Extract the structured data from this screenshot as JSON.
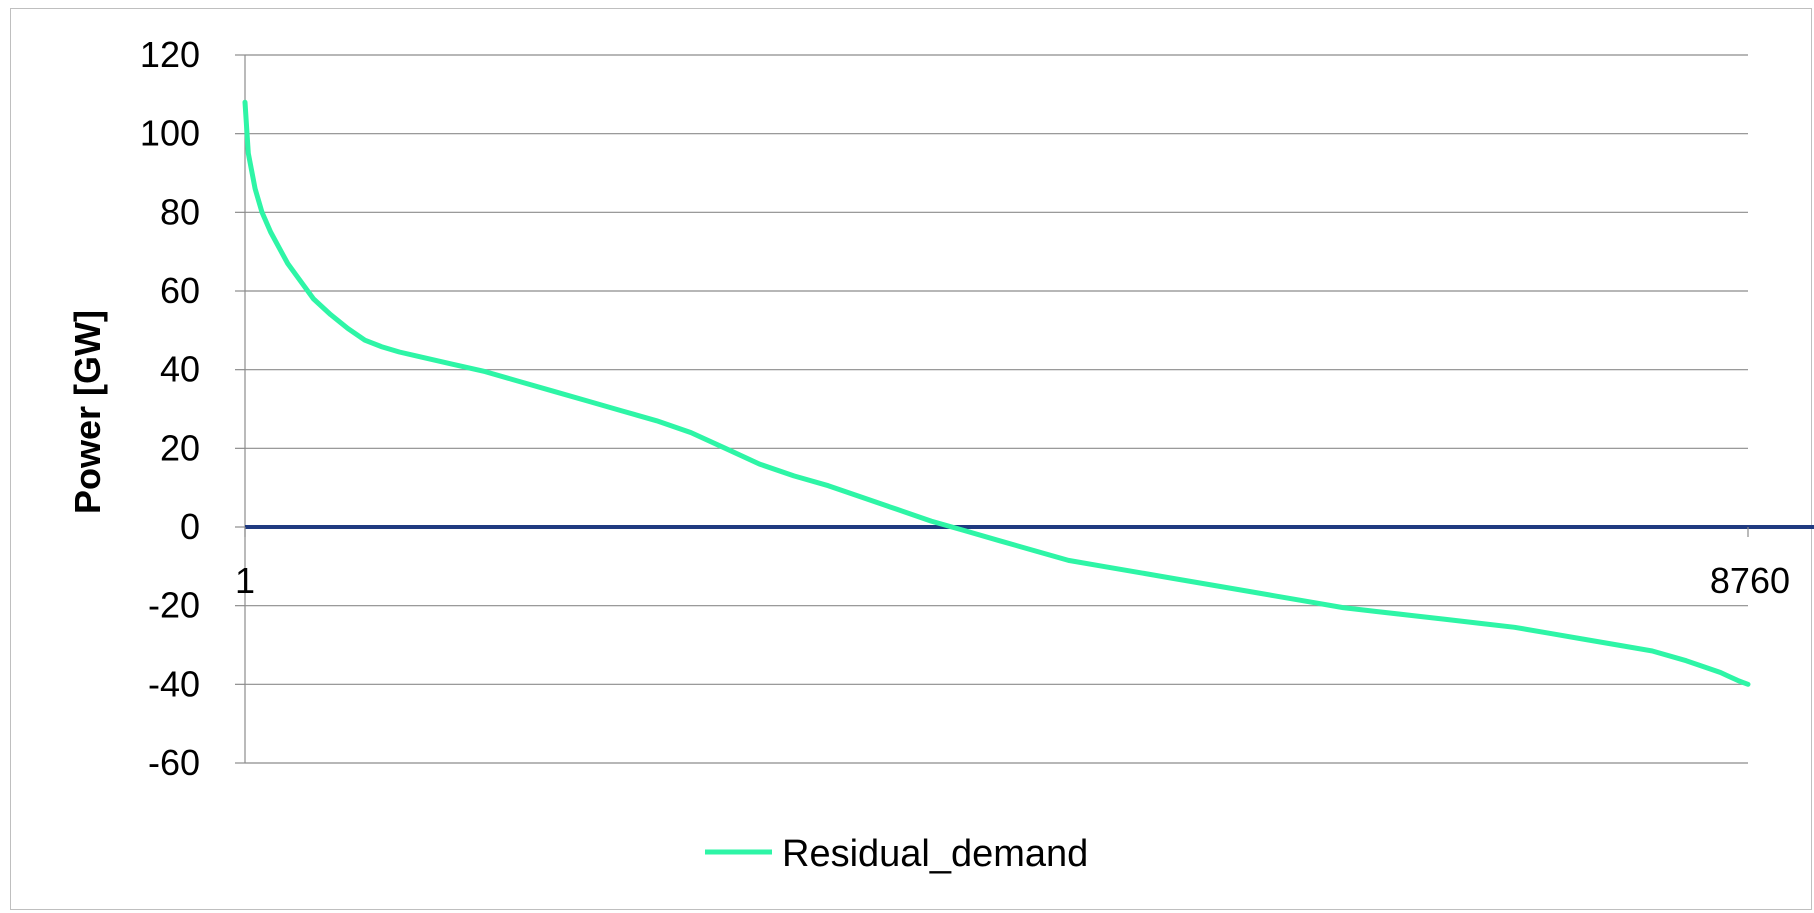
{
  "chart_data": {
    "type": "line",
    "title": "",
    "xlabel": "",
    "ylabel": "Power [GW]",
    "ylim": [
      -60,
      120
    ],
    "yticks": [
      120,
      100,
      80,
      60,
      40,
      20,
      0,
      -20,
      -40,
      -60
    ],
    "xlim": [
      1,
      8760
    ],
    "xtick_labels": [
      "1",
      "8760"
    ],
    "grid": true,
    "legend": "bottom",
    "zero_line_color": "#1f3a80",
    "series": [
      {
        "name": "Residual_demand",
        "color": "#2ef5a6",
        "x": [
          1,
          20,
          60,
          100,
          150,
          200,
          250,
          300,
          400,
          500,
          600,
          700,
          800,
          900,
          1000,
          1200,
          1400,
          1600,
          1800,
          2000,
          2200,
          2400,
          2600,
          2800,
          3000,
          3200,
          3400,
          3600,
          3800,
          4000,
          4200,
          4400,
          4600,
          4800,
          5000,
          5200,
          5400,
          5600,
          5800,
          6000,
          6200,
          6400,
          6600,
          6800,
          7000,
          7200,
          7400,
          7600,
          7800,
          8000,
          8200,
          8400,
          8500,
          8600,
          8650,
          8700,
          8730,
          8760
        ],
        "values": [
          108,
          95,
          86,
          80,
          75,
          71,
          67,
          64,
          58,
          54,
          50.5,
          47.5,
          45.8,
          44.5,
          43.5,
          41.5,
          39.5,
          37,
          34.5,
          32,
          29.5,
          27,
          24,
          20,
          16,
          13,
          10.5,
          7.5,
          4.5,
          1.5,
          -1,
          -3.5,
          -6,
          -8.5,
          -10,
          -11.5,
          -13,
          -14.5,
          -16,
          -17.5,
          -19,
          -20.5,
          -21.5,
          -22.5,
          -23.5,
          -24.5,
          -25.5,
          -27,
          -28.5,
          -30,
          -31.5,
          -34,
          -35.5,
          -37,
          -38,
          -39,
          -39.5,
          -40
        ]
      }
    ]
  }
}
